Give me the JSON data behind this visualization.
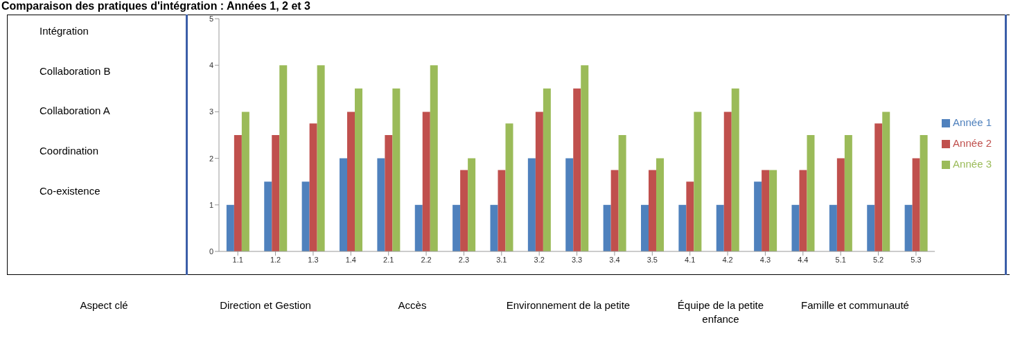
{
  "chart_data": {
    "type": "bar",
    "title": "Comparaison des pratiques d'intégration : Années 1, 2 et 3",
    "categories": [
      "1.1",
      "1.2",
      "1.3",
      "1.4",
      "2.1",
      "2.2",
      "2.3",
      "3.1",
      "3.2",
      "3.3",
      "3.4",
      "3.5",
      "4.1",
      "4.2",
      "4.3",
      "4.4",
      "5.1",
      "5.2",
      "5.3"
    ],
    "series": [
      {
        "name": "Année 1",
        "color": "#4f81bd",
        "values": [
          1,
          1.5,
          1.5,
          2,
          2,
          1,
          1,
          1,
          2,
          2,
          1,
          1,
          1,
          1,
          1.5,
          1,
          1,
          1,
          1
        ]
      },
      {
        "name": "Année 2",
        "color": "#c0504d",
        "values": [
          2.5,
          2.5,
          2.75,
          3,
          2.5,
          3,
          1.75,
          1.75,
          3,
          3.5,
          1.75,
          1.75,
          1.5,
          3,
          1.75,
          1.75,
          2,
          2.75,
          2
        ]
      },
      {
        "name": "Année 3",
        "color": "#9bbb59",
        "values": [
          3,
          4,
          4,
          3.5,
          3.5,
          4,
          2,
          2.75,
          3.5,
          4,
          2.5,
          2,
          3,
          3.5,
          1.75,
          2.5,
          2.5,
          3,
          2.5
        ]
      }
    ],
    "ylim": [
      0,
      5
    ],
    "yticks": [
      0,
      1,
      2,
      3,
      4,
      5
    ],
    "grid": false,
    "legend": "right",
    "annotations": [
      "Intégration",
      "Collaboration B",
      "Collaboration A",
      "Coordination",
      "Co-existence",
      "Aspect clé",
      "Direction et Gestion",
      "Accès",
      "Environnement de la petite",
      "Équipe de la petite enfance",
      "Famille et communauté"
    ]
  }
}
